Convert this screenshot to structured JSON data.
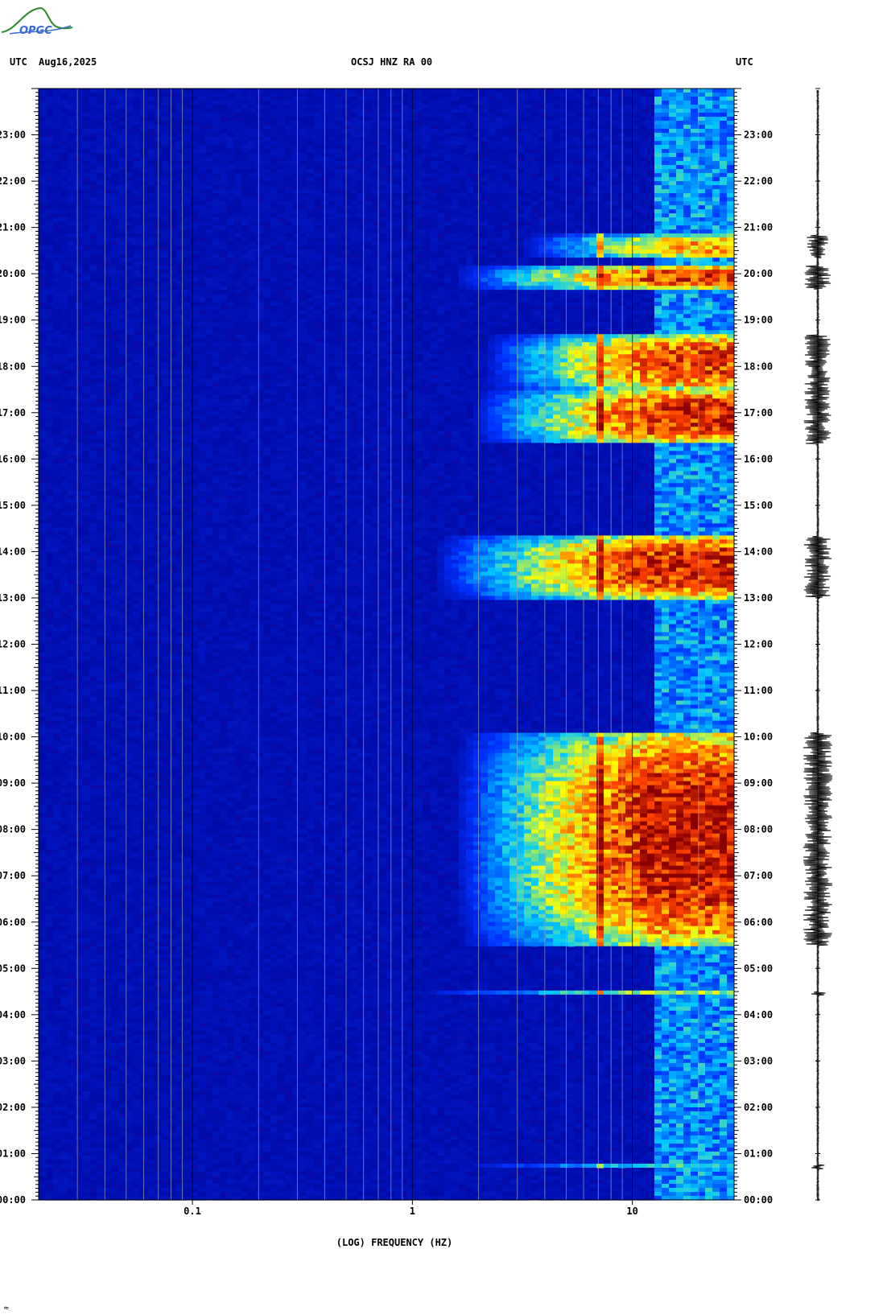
{
  "header": {
    "left_utc": "UTC",
    "date": "Aug16,2025",
    "station": "OCSJ HNZ RA 00",
    "right_utc": "UTC"
  },
  "logo": {
    "text": "OPGC",
    "color": "#2a8a2a"
  },
  "footer_mark": "≈",
  "chart_data": {
    "type": "heatmap",
    "title": "OCSJ HNZ RA 00",
    "xlabel": "(LOG) FREQUENCY (HZ)",
    "ylabel": "",
    "x_scale": "log",
    "xlim": [
      0.02,
      29
    ],
    "x_ticks": [
      {
        "value": 0.1,
        "label": "0.1"
      },
      {
        "value": 1,
        "label": "1"
      },
      {
        "value": 10,
        "label": "10"
      }
    ],
    "ylim": [
      "00:00",
      "24:00"
    ],
    "y_ticks": [
      "00:00",
      "01:00",
      "02:00",
      "03:00",
      "04:00",
      "05:00",
      "06:00",
      "07:00",
      "08:00",
      "09:00",
      "10:00",
      "11:00",
      "12:00",
      "13:00",
      "14:00",
      "15:00",
      "16:00",
      "17:00",
      "18:00",
      "19:00",
      "20:00",
      "21:00",
      "22:00",
      "23:00"
    ],
    "colormap": [
      "#00008b",
      "#0030ff",
      "#00c8ff",
      "#ffff00",
      "#ff4000",
      "#8b0000"
    ],
    "background_color": "#0a0aa8",
    "bursts": [
      {
        "start": "05:30",
        "end": "10:05",
        "fmin": 1.5,
        "peak": 1.0
      },
      {
        "start": "13:00",
        "end": "14:20",
        "fmin": 1.2,
        "peak": 0.95
      },
      {
        "start": "16:20",
        "end": "17:30",
        "fmin": 1.8,
        "peak": 0.95
      },
      {
        "start": "17:30",
        "end": "18:40",
        "fmin": 2.0,
        "peak": 0.9
      },
      {
        "start": "19:40",
        "end": "20:10",
        "fmin": 1.5,
        "peak": 0.9
      },
      {
        "start": "20:20",
        "end": "20:50",
        "fmin": 3.0,
        "peak": 0.75
      },
      {
        "start": "04:25",
        "end": "04:30",
        "fmin": 1.0,
        "peak": 0.6
      },
      {
        "start": "00:40",
        "end": "00:45",
        "fmin": 1.5,
        "peak": 0.55
      }
    ],
    "high_freq_band_start_hz": 13,
    "narrow_line_hz": 7.3
  }
}
